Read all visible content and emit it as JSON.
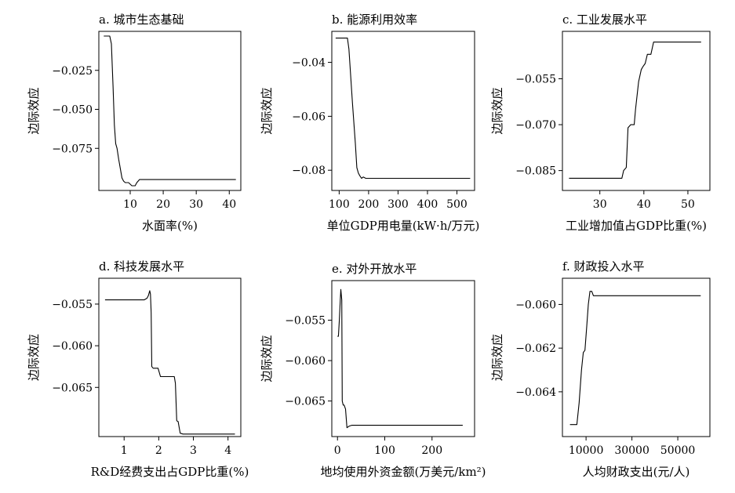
{
  "chart_data": [
    {
      "type": "line",
      "title": "a. 城市生态基础",
      "xlabel": "水面率(%)",
      "ylabel": "边际效应",
      "xlim": [
        0.5,
        43.5
      ],
      "ylim": [
        -0.102,
        0.0
      ],
      "xticks": [
        10,
        20,
        30,
        40
      ],
      "xtick_labels": [
        "10",
        "20",
        "30",
        "40"
      ],
      "yticks": [
        -0.025,
        -0.05,
        -0.075
      ],
      "ytick_labels": [
        "−0.025",
        "−0.050",
        "−0.075"
      ],
      "x": [
        2,
        3.8,
        4.3,
        4.8,
        5.2,
        5.6,
        6.0,
        6.5,
        7.0,
        7.5,
        8.0,
        8.5,
        9.5,
        10.5,
        11.5,
        12.0,
        12.8,
        14,
        20,
        30,
        42
      ],
      "y": [
        -0.003,
        -0.003,
        -0.008,
        -0.035,
        -0.06,
        -0.072,
        -0.075,
        -0.082,
        -0.088,
        -0.094,
        -0.096,
        -0.097,
        -0.097,
        -0.099,
        -0.099,
        -0.097,
        -0.095,
        -0.095,
        -0.095,
        -0.095,
        -0.095
      ]
    },
    {
      "type": "line",
      "title": "b. 能源利用效率",
      "xlabel": "单位GDP用电量(kW·h/万元)",
      "ylabel": "边际效应",
      "xlim": [
        75,
        560
      ],
      "ylim": [
        -0.0875,
        -0.0285
      ],
      "xticks": [
        100,
        200,
        300,
        400,
        500
      ],
      "xtick_labels": [
        "100",
        "200",
        "300",
        "400",
        "500"
      ],
      "yticks": [
        -0.04,
        -0.06,
        -0.08
      ],
      "ytick_labels": [
        "−0.04",
        "−0.06",
        "−0.08"
      ],
      "x": [
        88,
        128,
        133,
        145,
        155,
        160,
        165,
        170,
        176,
        182,
        190,
        200,
        300,
        400,
        545
      ],
      "y": [
        -0.031,
        -0.031,
        -0.035,
        -0.055,
        -0.07,
        -0.079,
        -0.081,
        -0.082,
        -0.083,
        -0.0825,
        -0.083,
        -0.083,
        -0.083,
        -0.083,
        -0.083
      ]
    },
    {
      "type": "line",
      "title": "c. 工业发展水平",
      "xlabel": "工业增加值占GDP比重(%)",
      "ylabel": "边际效应",
      "xlim": [
        21.5,
        55
      ],
      "ylim": [
        -0.0915,
        -0.0395
      ],
      "xticks": [
        30,
        40,
        50
      ],
      "xtick_labels": [
        "30",
        "40",
        "50"
      ],
      "yticks": [
        -0.055,
        -0.07,
        -0.085
      ],
      "ytick_labels": [
        "−0.055",
        "−0.070",
        "−0.085"
      ],
      "x": [
        23,
        35,
        35.4,
        36,
        36.4,
        37,
        37.8,
        38.1,
        38.8,
        39.4,
        39.8,
        40.3,
        40.8,
        41.6,
        42.2,
        44,
        53
      ],
      "y": [
        -0.0875,
        -0.0875,
        -0.085,
        -0.084,
        -0.071,
        -0.07,
        -0.07,
        -0.065,
        -0.056,
        -0.052,
        -0.051,
        -0.05,
        -0.047,
        -0.047,
        -0.043,
        -0.043,
        -0.043
      ]
    },
    {
      "type": "line",
      "title": "d. 科技发展水平",
      "xlabel": "R&D经费支出占GDP比重(%)",
      "ylabel": "边际效应",
      "xlim": [
        0.27,
        4.37
      ],
      "ylim": [
        -0.0709,
        -0.0519
      ],
      "xticks": [
        1,
        2,
        3,
        4
      ],
      "xtick_labels": [
        "1",
        "2",
        "3",
        "4"
      ],
      "yticks": [
        -0.055,
        -0.06,
        -0.065
      ],
      "ytick_labels": [
        "−0.055",
        "−0.060",
        "−0.065"
      ],
      "x": [
        0.45,
        1.58,
        1.66,
        1.7,
        1.74,
        1.76,
        1.78,
        1.8,
        1.84,
        1.98,
        2.05,
        2.45,
        2.48,
        2.52,
        2.56,
        2.62,
        2.7,
        4.2
      ],
      "y": [
        -0.0545,
        -0.0545,
        -0.0543,
        -0.054,
        -0.0534,
        -0.0538,
        -0.056,
        -0.0625,
        -0.0627,
        -0.0627,
        -0.0637,
        -0.0637,
        -0.0645,
        -0.069,
        -0.0691,
        -0.0705,
        -0.0706,
        -0.0706
      ]
    },
    {
      "type": "line",
      "title": "e. 对外开放水平",
      "xlabel": "地均使用外资金额(万美元/km²)",
      "ylabel": "边际效应",
      "xlim": [
        -12,
        290
      ],
      "ylim": [
        -0.0694,
        -0.0501
      ],
      "xticks": [
        0,
        100,
        200
      ],
      "xtick_labels": [
        "0",
        "100",
        "200"
      ],
      "yticks": [
        -0.055,
        -0.06,
        -0.065
      ],
      "ytick_labels": [
        "−0.055",
        "−0.060",
        "−0.065"
      ],
      "x": [
        0,
        2,
        4,
        6,
        7,
        9,
        10,
        12,
        14,
        17,
        20,
        25,
        30,
        100,
        200,
        265
      ],
      "y": [
        -0.057,
        -0.057,
        -0.055,
        -0.0525,
        -0.0512,
        -0.0525,
        -0.065,
        -0.0655,
        -0.0655,
        -0.066,
        -0.0683,
        -0.0681,
        -0.068,
        -0.068,
        -0.068,
        -0.068
      ]
    },
    {
      "type": "line",
      "title": "f. 财政投入水平",
      "xlabel": "人均财政支出(元/人)",
      "ylabel": "边际效应",
      "xlim": [
        -300,
        64000
      ],
      "ylim": [
        -0.06605,
        -0.0588
      ],
      "xticks": [
        10000,
        30000,
        50000
      ],
      "xtick_labels": [
        "10000",
        "30000",
        "50000"
      ],
      "yticks": [
        -0.06,
        -0.062,
        -0.064
      ],
      "ytick_labels": [
        "−0.060",
        "−0.062",
        "−0.064"
      ],
      "x": [
        3000,
        6000,
        7000,
        8000,
        8800,
        9500,
        10300,
        11000,
        11700,
        12500,
        13200,
        15000,
        30000,
        50000,
        60000
      ],
      "y": [
        -0.0655,
        -0.0655,
        -0.0645,
        -0.063,
        -0.0622,
        -0.0621,
        -0.061,
        -0.06,
        -0.0594,
        -0.0594,
        -0.0596,
        -0.0596,
        -0.0596,
        -0.0596,
        -0.0596
      ]
    }
  ]
}
